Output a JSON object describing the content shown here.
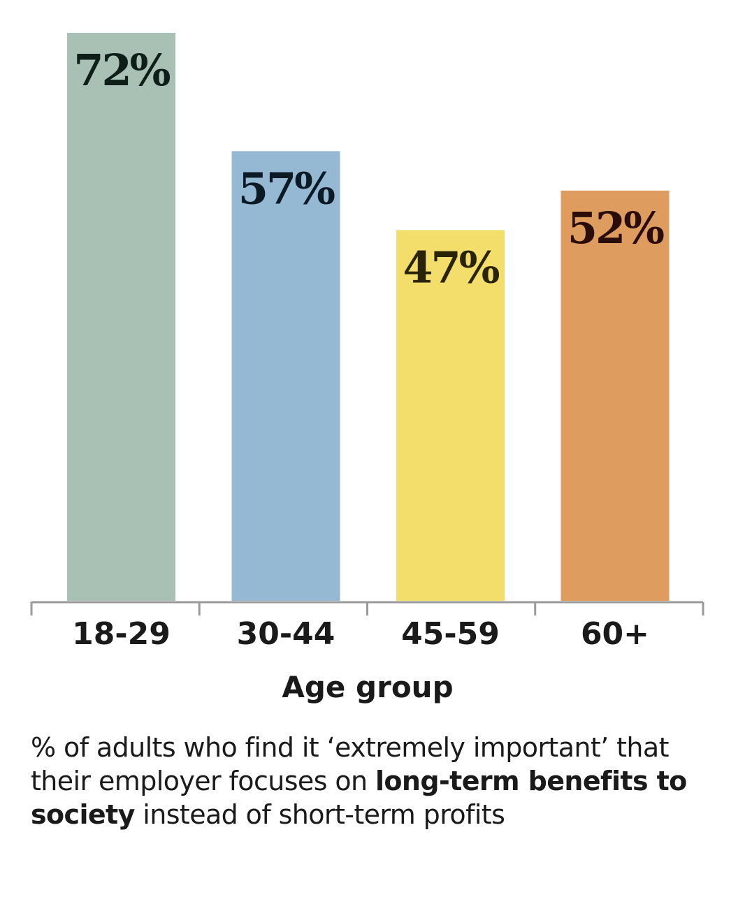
{
  "chart_data": {
    "type": "bar",
    "categories": [
      "18-29",
      "30-44",
      "45-59",
      "60+"
    ],
    "values": [
      72,
      57,
      47,
      52
    ],
    "value_labels": [
      "72%",
      "57%",
      "47%",
      "52%"
    ],
    "colors": [
      "#a8c1b4",
      "#95b8d3",
      "#f3de6b",
      "#de9c5f"
    ],
    "label_colors": [
      "#0f1e18",
      "#0c1a26",
      "#2a2406",
      "#2a0d0a"
    ],
    "xlabel": "Age group",
    "ylabel": "",
    "ylim": [
      0,
      72
    ],
    "grid": false,
    "legend": "none"
  },
  "caption": {
    "part1": "% of adults who find it ‘extremely important’ that their employer focuses on ",
    "bold": "long-term benefits to society",
    "part2": " instead of short-term profits"
  }
}
